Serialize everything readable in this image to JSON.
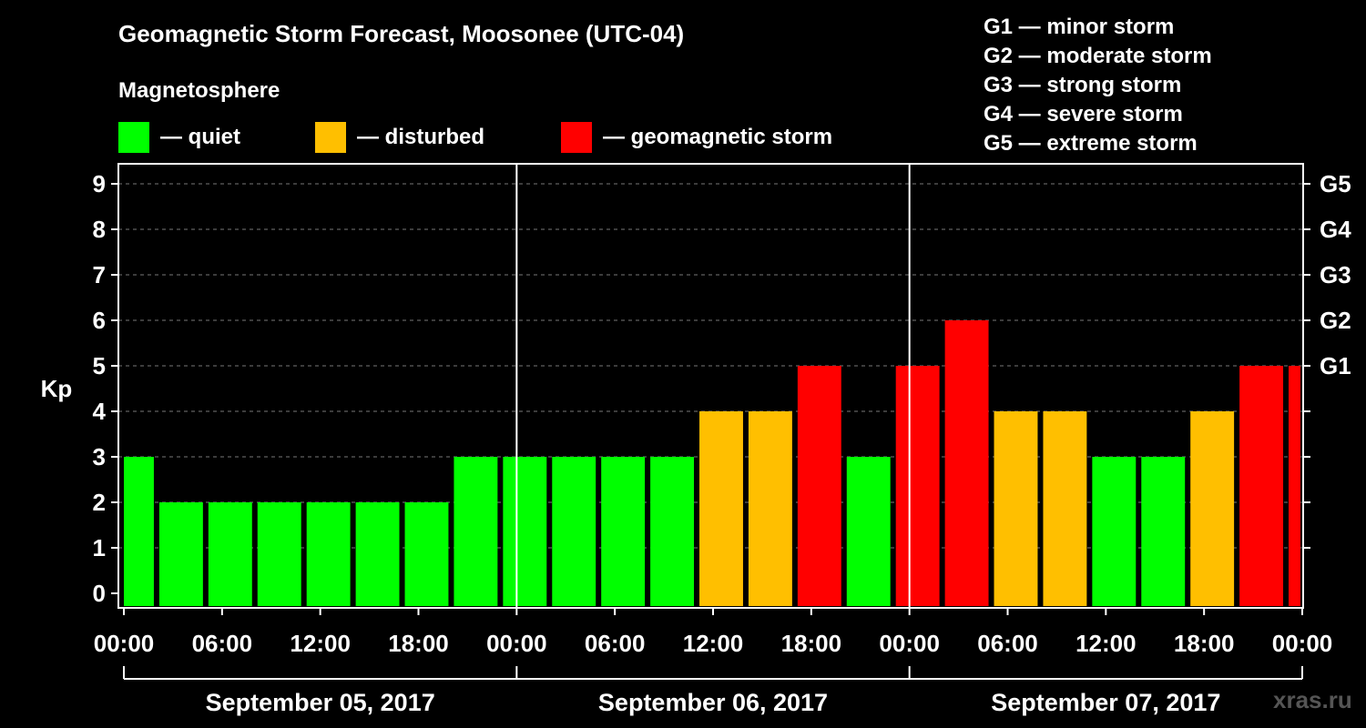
{
  "title": "Geomagnetic Storm Forecast, Moosonee (UTC-04)",
  "subtitle": "Magnetosphere",
  "legend": [
    {
      "label": "— quiet",
      "color": "#00ff00"
    },
    {
      "label": "— disturbed",
      "color": "#ffbf00"
    },
    {
      "label": "— geomagnetic storm",
      "color": "#ff0000"
    }
  ],
  "storm_scale": [
    "G1 — minor storm",
    "G2 — moderate storm",
    "G3 — strong storm",
    "G4 — severe storm",
    "G5 — extreme storm"
  ],
  "watermark": "xras.ru",
  "colors": {
    "quiet": "#00ff00",
    "disturbed": "#ffbf00",
    "storm": "#ff0000"
  },
  "chart_data": {
    "type": "bar",
    "ylabel": "Kp",
    "ylim": [
      0,
      9
    ],
    "yticks": [
      0,
      1,
      2,
      3,
      4,
      5,
      6,
      7,
      8,
      9
    ],
    "right_axis_labels": [
      {
        "kp": 5,
        "label": "G1"
      },
      {
        "kp": 6,
        "label": "G2"
      },
      {
        "kp": 7,
        "label": "G3"
      },
      {
        "kp": 8,
        "label": "G4"
      },
      {
        "kp": 9,
        "label": "G5"
      }
    ],
    "xrange_hours": [
      0,
      72
    ],
    "xticks": [
      {
        "hour": 0,
        "label": "00:00"
      },
      {
        "hour": 6,
        "label": "06:00"
      },
      {
        "hour": 12,
        "label": "12:00"
      },
      {
        "hour": 18,
        "label": "18:00"
      },
      {
        "hour": 24,
        "label": "00:00"
      },
      {
        "hour": 30,
        "label": "06:00"
      },
      {
        "hour": 36,
        "label": "12:00"
      },
      {
        "hour": 42,
        "label": "18:00"
      },
      {
        "hour": 48,
        "label": "00:00"
      },
      {
        "hour": 54,
        "label": "06:00"
      },
      {
        "hour": 60,
        "label": "12:00"
      },
      {
        "hour": 66,
        "label": "18:00"
      },
      {
        "hour": 72,
        "label": "00:00"
      }
    ],
    "days": [
      {
        "label": "September 05, 2017",
        "start_hour": 0,
        "end_hour": 24
      },
      {
        "label": "September 06, 2017",
        "start_hour": 24,
        "end_hour": 48
      },
      {
        "label": "September 07, 2017",
        "start_hour": 48,
        "end_hour": 72
      }
    ],
    "day_dividers_hours": [
      24,
      48
    ],
    "bars": [
      {
        "start_hour": 0,
        "end_hour": 2,
        "kp": 3,
        "level": "quiet"
      },
      {
        "start_hour": 2,
        "end_hour": 5,
        "kp": 2,
        "level": "quiet"
      },
      {
        "start_hour": 5,
        "end_hour": 8,
        "kp": 2,
        "level": "quiet"
      },
      {
        "start_hour": 8,
        "end_hour": 11,
        "kp": 2,
        "level": "quiet"
      },
      {
        "start_hour": 11,
        "end_hour": 14,
        "kp": 2,
        "level": "quiet"
      },
      {
        "start_hour": 14,
        "end_hour": 17,
        "kp": 2,
        "level": "quiet"
      },
      {
        "start_hour": 17,
        "end_hour": 20,
        "kp": 2,
        "level": "quiet"
      },
      {
        "start_hour": 20,
        "end_hour": 23,
        "kp": 3,
        "level": "quiet"
      },
      {
        "start_hour": 23,
        "end_hour": 26,
        "kp": 3,
        "level": "quiet"
      },
      {
        "start_hour": 26,
        "end_hour": 29,
        "kp": 3,
        "level": "quiet"
      },
      {
        "start_hour": 29,
        "end_hour": 32,
        "kp": 3,
        "level": "quiet"
      },
      {
        "start_hour": 32,
        "end_hour": 35,
        "kp": 3,
        "level": "quiet"
      },
      {
        "start_hour": 35,
        "end_hour": 38,
        "kp": 4,
        "level": "disturbed"
      },
      {
        "start_hour": 38,
        "end_hour": 41,
        "kp": 4,
        "level": "disturbed"
      },
      {
        "start_hour": 41,
        "end_hour": 44,
        "kp": 5,
        "level": "storm"
      },
      {
        "start_hour": 44,
        "end_hour": 47,
        "kp": 3,
        "level": "quiet"
      },
      {
        "start_hour": 47,
        "end_hour": 50,
        "kp": 5,
        "level": "storm"
      },
      {
        "start_hour": 50,
        "end_hour": 53,
        "kp": 6,
        "level": "storm"
      },
      {
        "start_hour": 53,
        "end_hour": 56,
        "kp": 4,
        "level": "disturbed"
      },
      {
        "start_hour": 56,
        "end_hour": 59,
        "kp": 4,
        "level": "disturbed"
      },
      {
        "start_hour": 59,
        "end_hour": 62,
        "kp": 3,
        "level": "quiet"
      },
      {
        "start_hour": 62,
        "end_hour": 65,
        "kp": 3,
        "level": "quiet"
      },
      {
        "start_hour": 65,
        "end_hour": 68,
        "kp": 4,
        "level": "disturbed"
      },
      {
        "start_hour": 68,
        "end_hour": 71,
        "kp": 5,
        "level": "storm"
      },
      {
        "start_hour": 71,
        "end_hour": 72,
        "kp": 5,
        "level": "storm"
      }
    ]
  }
}
